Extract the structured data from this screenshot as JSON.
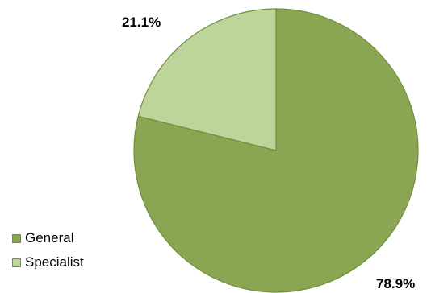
{
  "chart_data": {
    "type": "pie",
    "slices": [
      {
        "name": "General",
        "value": 78.9,
        "label": "78.9%",
        "color": "#8ba653"
      },
      {
        "name": "Specialist",
        "value": 21.1,
        "label": "21.1%",
        "color": "#bdd49a"
      }
    ],
    "legend_position": "bottom-left",
    "stroke_color": "#6f8f3d"
  }
}
